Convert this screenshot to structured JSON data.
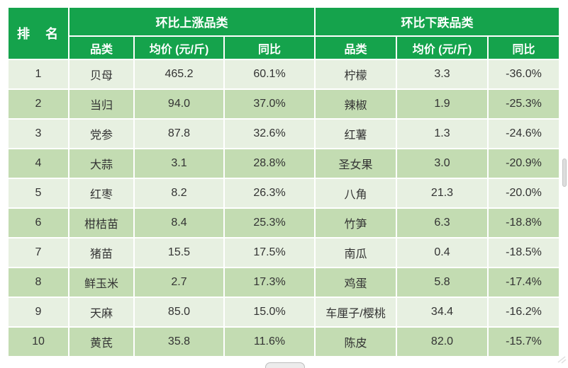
{
  "colors": {
    "header_green": "#15a34c",
    "row_light": "#e7f0e1",
    "row_dark": "#c3dcb2",
    "grid_white": "#ffffff",
    "text_dark": "#333333"
  },
  "table": {
    "rank_header": "排　名",
    "groups": [
      {
        "title": "环比上涨品类",
        "columns": [
          "品类",
          "均价 (元/斤)",
          "同比"
        ]
      },
      {
        "title": "环比下跌品类",
        "columns": [
          "品类",
          "均价 (元/斤)",
          "同比"
        ]
      }
    ],
    "rows": [
      {
        "rank": "1",
        "up": [
          "贝母",
          "465.2",
          "60.1%"
        ],
        "down": [
          "柠檬",
          "3.3",
          "-36.0%"
        ]
      },
      {
        "rank": "2",
        "up": [
          "当归",
          "94.0",
          "37.0%"
        ],
        "down": [
          "辣椒",
          "1.9",
          "-25.3%"
        ]
      },
      {
        "rank": "3",
        "up": [
          "党参",
          "87.8",
          "32.6%"
        ],
        "down": [
          "红薯",
          "1.3",
          "-24.6%"
        ]
      },
      {
        "rank": "4",
        "up": [
          "大蒜",
          "3.1",
          "28.8%"
        ],
        "down": [
          "圣女果",
          "3.0",
          "-20.9%"
        ]
      },
      {
        "rank": "5",
        "up": [
          "红枣",
          "8.2",
          "26.3%"
        ],
        "down": [
          "八角",
          "21.3",
          "-20.0%"
        ]
      },
      {
        "rank": "6",
        "up": [
          "柑桔苗",
          "8.4",
          "25.3%"
        ],
        "down": [
          "竹笋",
          "6.3",
          "-18.8%"
        ]
      },
      {
        "rank": "7",
        "up": [
          "猪苗",
          "15.5",
          "17.5%"
        ],
        "down": [
          "南瓜",
          "0.4",
          "-18.5%"
        ]
      },
      {
        "rank": "8",
        "up": [
          "鲜玉米",
          "2.7",
          "17.3%"
        ],
        "down": [
          "鸡蛋",
          "5.8",
          "-17.4%"
        ]
      },
      {
        "rank": "9",
        "up": [
          "天麻",
          "85.0",
          "15.0%"
        ],
        "down": [
          "车厘子/樱桃",
          "34.4",
          "-16.2%"
        ]
      },
      {
        "rank": "10",
        "up": [
          "黄芪",
          "35.8",
          "11.6%"
        ],
        "down": [
          "陈皮",
          "82.0",
          "-15.7%"
        ]
      }
    ]
  },
  "chart_data": {
    "type": "table",
    "title": "",
    "columns": [
      "排名",
      "环比上涨品类-品类",
      "环比上涨品类-均价(元/斤)",
      "环比上涨品类-同比",
      "环比下跌品类-品类",
      "环比下跌品类-均价(元/斤)",
      "环比下跌品类-同比"
    ],
    "rows": [
      [
        1,
        "贝母",
        465.2,
        "60.1%",
        "柠檬",
        3.3,
        "-36.0%"
      ],
      [
        2,
        "当归",
        94.0,
        "37.0%",
        "辣椒",
        1.9,
        "-25.3%"
      ],
      [
        3,
        "党参",
        87.8,
        "32.6%",
        "红薯",
        1.3,
        "-24.6%"
      ],
      [
        4,
        "大蒜",
        3.1,
        "28.8%",
        "圣女果",
        3.0,
        "-20.9%"
      ],
      [
        5,
        "红枣",
        8.2,
        "26.3%",
        "八角",
        21.3,
        "-20.0%"
      ],
      [
        6,
        "柑桔苗",
        8.4,
        "25.3%",
        "竹笋",
        6.3,
        "-18.8%"
      ],
      [
        7,
        "猪苗",
        15.5,
        "17.5%",
        "南瓜",
        0.4,
        "-18.5%"
      ],
      [
        8,
        "鲜玉米",
        2.7,
        "17.3%",
        "鸡蛋",
        5.8,
        "-17.4%"
      ],
      [
        9,
        "天麻",
        85.0,
        "15.0%",
        "车厘子/樱桃",
        34.4,
        "-16.2%"
      ],
      [
        10,
        "黄芪",
        35.8,
        "11.6%",
        "陈皮",
        82.0,
        "-15.7%"
      ]
    ]
  }
}
